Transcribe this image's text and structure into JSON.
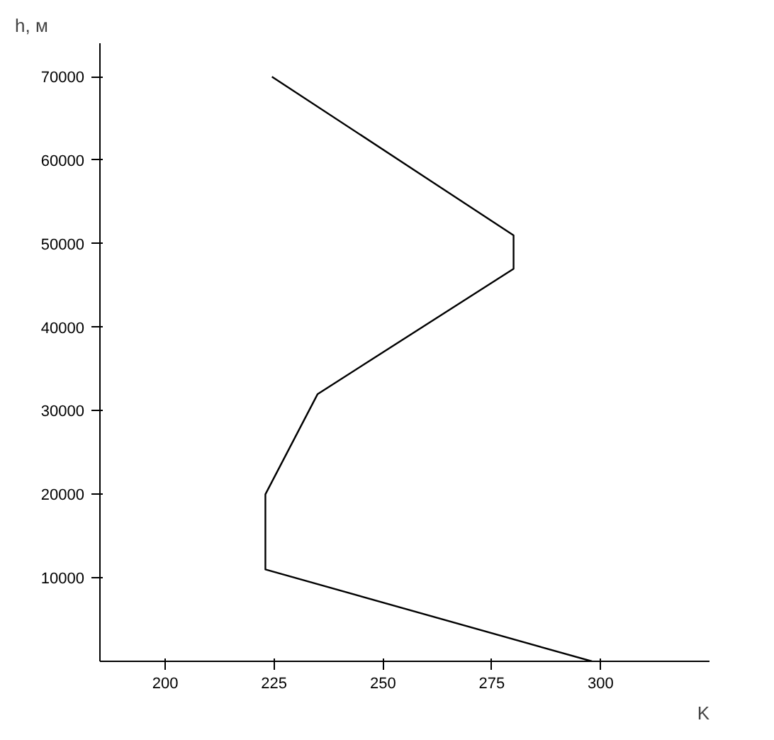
{
  "chart_data": {
    "type": "line",
    "xlabel": "K",
    "ylabel": "h, м",
    "x": [
      298,
      223,
      223,
      235,
      280,
      280,
      224.5
    ],
    "series": [
      {
        "color": "#000000",
        "values": [
          0,
          11000,
          20000,
          32000,
          47000,
          51000,
          70000
        ]
      }
    ],
    "xlim": [
      185,
      325
    ],
    "ylim": [
      0,
      74000
    ],
    "xticks": [
      200,
      225,
      250,
      275,
      300
    ],
    "yticks": [
      10000,
      20000,
      30000,
      40000,
      50000,
      60000,
      70000
    ],
    "grid": false,
    "marker": "none",
    "line_style": "solid"
  }
}
